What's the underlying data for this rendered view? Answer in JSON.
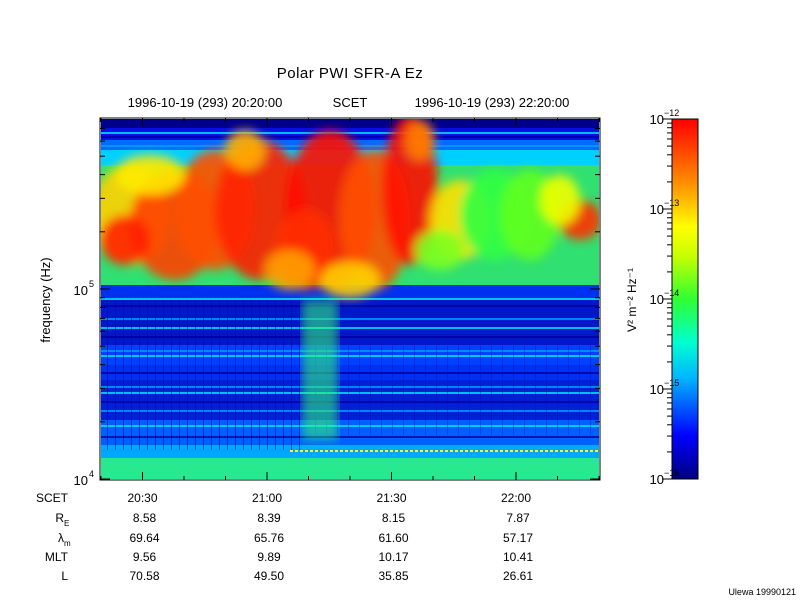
{
  "chart_data": {
    "type": "heatmap",
    "title": "Polar PWI SFR-A Ez",
    "time_range_label": {
      "start": "1996-10-19 (293) 20:20:00",
      "frame": "SCET",
      "end": "1996-10-19 (293) 22:20:00"
    },
    "ylabel": "frequency (Hz)",
    "y_scale": "log",
    "y_ticks": [
      {
        "value": 10000,
        "base": "10",
        "exp": "4"
      },
      {
        "value": 100000,
        "base": "10",
        "exp": "5"
      }
    ],
    "x_range": [
      "20:20:00",
      "22:20:00"
    ],
    "x_ticks": [
      "20:30",
      "21:00",
      "21:30",
      "22:00"
    ],
    "ephemeris_rows": [
      {
        "label": "SCET",
        "sub": "",
        "values": [
          "20:30",
          "21:00",
          "21:30",
          "22:00"
        ]
      },
      {
        "label": "R",
        "sub": "E",
        "values": [
          "8.58",
          "8.39",
          "8.15",
          "7.87"
        ]
      },
      {
        "label": "λ",
        "sub": "m",
        "values": [
          "69.64",
          "65.76",
          "61.60",
          "57.17"
        ]
      },
      {
        "label": "MLT",
        "sub": "",
        "values": [
          "9.56",
          "9.89",
          "10.17",
          "10.41"
        ]
      },
      {
        "label": "L",
        "sub": "",
        "values": [
          "70.58",
          "49.50",
          "35.85",
          "26.61"
        ]
      }
    ],
    "colorbar": {
      "scale": "log",
      "label": "V² m⁻² Hz⁻¹",
      "range": [
        1e-16,
        1e-12
      ],
      "ticks": [
        {
          "value": 1e-12,
          "base": "10",
          "exp": "−12"
        },
        {
          "value": 1e-13,
          "base": "10",
          "exp": "−13"
        },
        {
          "value": 1e-14,
          "base": "10",
          "exp": "−14"
        },
        {
          "value": 1e-15,
          "base": "10",
          "exp": "−15"
        },
        {
          "value": 1e-16,
          "base": "10",
          "exp": "−16"
        }
      ]
    },
    "grid": false
  },
  "footer": {
    "credit": "Ulewa 19990121"
  }
}
